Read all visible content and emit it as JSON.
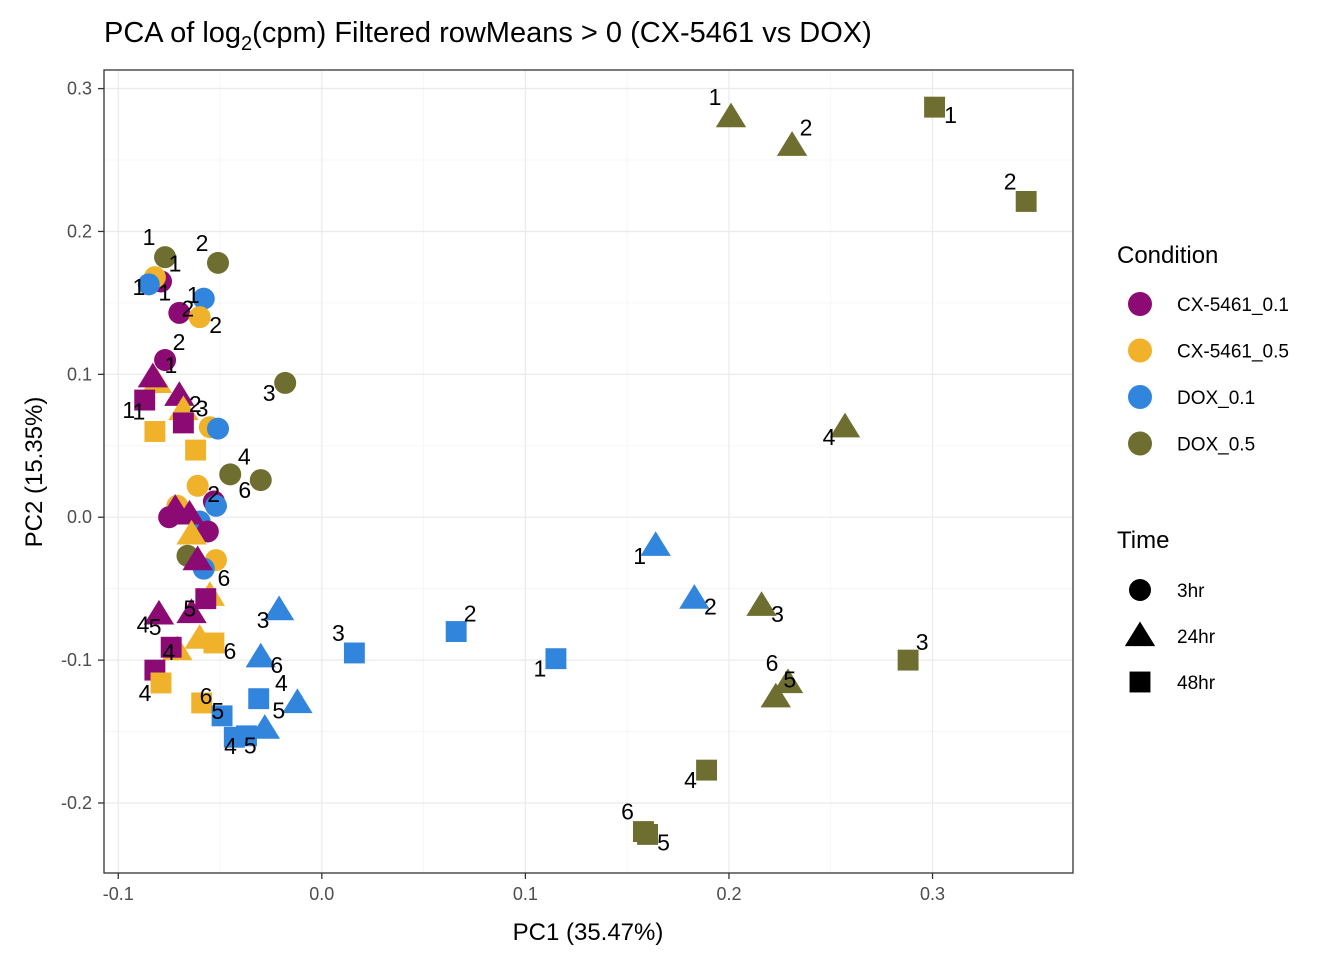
{
  "chart_data": {
    "type": "scatter",
    "title": "PCA of log2(cpm) Filtered rowMeans > 0 (CX-5461 vs DOX)",
    "title_parts": {
      "pre": "PCA of log",
      "sub": "2",
      "post": "(cpm) Filtered rowMeans > 0 (CX-5461 vs DOX)"
    },
    "xlabel": "PC1 (35.47%)",
    "ylabel": "PC2 (15.35%)",
    "xlim": [
      -0.107,
      0.369
    ],
    "ylim": [
      -0.249,
      0.313
    ],
    "x_ticks": [
      -0.1,
      0.0,
      0.1,
      0.2,
      0.3
    ],
    "y_ticks": [
      -0.2,
      -0.1,
      0.0,
      0.1,
      0.2,
      0.3
    ],
    "grid": true,
    "legend_position": "right",
    "colors": {
      "CX-5461_0.1": "#8b0a73",
      "CX-5461_0.5": "#f0b22a",
      "DOX_0.1": "#3285dc",
      "DOX_0.5": "#6d6e2f"
    },
    "legend": {
      "condition_title": "Condition",
      "conditions": [
        "CX-5461_0.1",
        "CX-5461_0.5",
        "DOX_0.1",
        "DOX_0.5"
      ],
      "time_title": "Time",
      "times": [
        {
          "label": "3hr",
          "shape": "circle"
        },
        {
          "label": "24hr",
          "shape": "triangle"
        },
        {
          "label": "48hr",
          "shape": "square"
        }
      ]
    },
    "points": [
      {
        "x": -0.079,
        "y": 0.165,
        "condition": "CX-5461_0.1",
        "time": "3hr",
        "label": "1"
      },
      {
        "x": -0.082,
        "y": 0.168,
        "condition": "CX-5461_0.5",
        "time": "3hr",
        "label": "1"
      },
      {
        "x": -0.085,
        "y": 0.163,
        "condition": "DOX_0.1",
        "time": "3hr",
        "label": "1"
      },
      {
        "x": -0.077,
        "y": 0.182,
        "condition": "DOX_0.5",
        "time": "3hr",
        "label": "1"
      },
      {
        "x": -0.07,
        "y": 0.143,
        "condition": "CX-5461_0.1",
        "time": "3hr",
        "label": "1"
      },
      {
        "x": -0.058,
        "y": 0.153,
        "condition": "DOX_0.1",
        "time": "3hr",
        "label": "2"
      },
      {
        "x": -0.06,
        "y": 0.14,
        "condition": "CX-5461_0.5",
        "time": "3hr",
        "label": "2"
      },
      {
        "x": -0.051,
        "y": 0.178,
        "condition": "DOX_0.5",
        "time": "3hr",
        "label": "2"
      },
      {
        "x": -0.077,
        "y": 0.11,
        "condition": "CX-5461_0.1",
        "time": "3hr",
        "label": "2"
      },
      {
        "x": -0.018,
        "y": 0.094,
        "condition": "DOX_0.5",
        "time": "3hr",
        "label": "3"
      },
      {
        "x": -0.055,
        "y": 0.063,
        "condition": "CX-5461_0.5",
        "time": "3hr",
        "label": ""
      },
      {
        "x": -0.051,
        "y": 0.062,
        "condition": "DOX_0.1",
        "time": "3hr",
        "label": "3"
      },
      {
        "x": -0.045,
        "y": 0.03,
        "condition": "DOX_0.5",
        "time": "3hr",
        "label": "4"
      },
      {
        "x": -0.03,
        "y": 0.026,
        "condition": "DOX_0.5",
        "time": "3hr",
        "label": "6"
      },
      {
        "x": -0.061,
        "y": 0.022,
        "condition": "CX-5461_0.5",
        "time": "3hr",
        "label": "2"
      },
      {
        "x": -0.053,
        "y": 0.011,
        "condition": "CX-5461_0.1",
        "time": "3hr",
        "label": ""
      },
      {
        "x": -0.071,
        "y": 0.008,
        "condition": "CX-5461_0.5",
        "time": "3hr",
        "label": ""
      },
      {
        "x": -0.052,
        "y": 0.008,
        "condition": "DOX_0.1",
        "time": "3hr",
        "label": ""
      },
      {
        "x": -0.075,
        "y": 0.0,
        "condition": "CX-5461_0.1",
        "time": "3hr",
        "label": ""
      },
      {
        "x": -0.06,
        "y": -0.003,
        "condition": "DOX_0.1",
        "time": "3hr",
        "label": ""
      },
      {
        "x": -0.056,
        "y": -0.01,
        "condition": "CX-5461_0.1",
        "time": "3hr",
        "label": ""
      },
      {
        "x": -0.066,
        "y": -0.027,
        "condition": "DOX_0.5",
        "time": "3hr",
        "label": ""
      },
      {
        "x": -0.052,
        "y": -0.03,
        "condition": "CX-5461_0.5",
        "time": "3hr",
        "label": ""
      },
      {
        "x": -0.058,
        "y": -0.036,
        "condition": "DOX_0.1",
        "time": "3hr",
        "label": ""
      },
      {
        "x": -0.081,
        "y": 0.094,
        "condition": "CX-5461_0.5",
        "time": "24hr",
        "label": "1"
      },
      {
        "x": -0.083,
        "y": 0.098,
        "condition": "CX-5461_0.1",
        "time": "24hr",
        "label": ""
      },
      {
        "x": -0.07,
        "y": 0.085,
        "condition": "CX-5461_0.1",
        "time": "24hr",
        "label": "2"
      },
      {
        "x": -0.068,
        "y": 0.075,
        "condition": "CX-5461_0.5",
        "time": "24hr",
        "label": ""
      },
      {
        "x": -0.072,
        "y": 0.006,
        "condition": "CX-5461_0.1",
        "time": "24hr",
        "label": ""
      },
      {
        "x": -0.065,
        "y": 0.002,
        "condition": "CX-5461_0.1",
        "time": "24hr",
        "label": ""
      },
      {
        "x": -0.064,
        "y": -0.012,
        "condition": "CX-5461_0.5",
        "time": "24hr",
        "label": ""
      },
      {
        "x": -0.061,
        "y": -0.03,
        "condition": "CX-5461_0.1",
        "time": "24hr",
        "label": ""
      },
      {
        "x": -0.055,
        "y": -0.055,
        "condition": "CX-5461_0.5",
        "time": "24hr",
        "label": "6"
      },
      {
        "x": -0.08,
        "y": -0.068,
        "condition": "CX-5461_0.1",
        "time": "24hr",
        "label": "4"
      },
      {
        "x": -0.064,
        "y": -0.067,
        "condition": "CX-5461_0.1",
        "time": "24hr",
        "label": ""
      },
      {
        "x": -0.06,
        "y": -0.085,
        "condition": "CX-5461_0.5",
        "time": "24hr",
        "label": ""
      },
      {
        "x": -0.071,
        "y": -0.093,
        "condition": "CX-5461_0.5",
        "time": "24hr",
        "label": ""
      },
      {
        "x": -0.021,
        "y": -0.065,
        "condition": "DOX_0.1",
        "time": "24hr",
        "label": "3"
      },
      {
        "x": -0.03,
        "y": -0.098,
        "condition": "DOX_0.1",
        "time": "24hr",
        "label": "6"
      },
      {
        "x": -0.012,
        "y": -0.13,
        "condition": "DOX_0.1",
        "time": "24hr",
        "label": "4"
      },
      {
        "x": -0.028,
        "y": -0.148,
        "condition": "DOX_0.1",
        "time": "24hr",
        "label": "5"
      },
      {
        "x": 0.164,
        "y": -0.02,
        "condition": "DOX_0.1",
        "time": "24hr",
        "label": "1"
      },
      {
        "x": 0.183,
        "y": -0.057,
        "condition": "DOX_0.1",
        "time": "24hr",
        "label": "2"
      },
      {
        "x": 0.201,
        "y": 0.28,
        "condition": "DOX_0.5",
        "time": "24hr",
        "label": "1"
      },
      {
        "x": 0.231,
        "y": 0.26,
        "condition": "DOX_0.5",
        "time": "24hr",
        "label": "2"
      },
      {
        "x": 0.257,
        "y": 0.063,
        "condition": "DOX_0.5",
        "time": "24hr",
        "label": "4"
      },
      {
        "x": 0.216,
        "y": -0.062,
        "condition": "DOX_0.5",
        "time": "24hr",
        "label": "3"
      },
      {
        "x": 0.229,
        "y": -0.116,
        "condition": "DOX_0.5",
        "time": "24hr",
        "label": "6"
      },
      {
        "x": 0.223,
        "y": -0.126,
        "condition": "DOX_0.5",
        "time": "24hr",
        "label": "5"
      },
      {
        "x": -0.087,
        "y": 0.082,
        "condition": "CX-5461_0.1",
        "time": "48hr",
        "label": "1"
      },
      {
        "x": -0.068,
        "y": 0.066,
        "condition": "CX-5461_0.1",
        "time": "48hr",
        "label": ""
      },
      {
        "x": -0.082,
        "y": 0.06,
        "condition": "CX-5461_0.5",
        "time": "48hr",
        "label": "1"
      },
      {
        "x": -0.062,
        "y": 0.047,
        "condition": "CX-5461_0.5",
        "time": "48hr",
        "label": ""
      },
      {
        "x": -0.057,
        "y": -0.057,
        "condition": "CX-5461_0.1",
        "time": "48hr",
        "label": "5"
      },
      {
        "x": -0.053,
        "y": -0.088,
        "condition": "CX-5461_0.5",
        "time": "48hr",
        "label": "6"
      },
      {
        "x": -0.074,
        "y": -0.091,
        "condition": "CX-5461_0.1",
        "time": "48hr",
        "label": "5"
      },
      {
        "x": -0.082,
        "y": -0.107,
        "condition": "CX-5461_0.1",
        "time": "48hr",
        "label": "4"
      },
      {
        "x": -0.079,
        "y": -0.116,
        "condition": "CX-5461_0.5",
        "time": "48hr",
        "label": "4"
      },
      {
        "x": -0.059,
        "y": -0.13,
        "condition": "CX-5461_0.5",
        "time": "48hr",
        "label": "5"
      },
      {
        "x": -0.049,
        "y": -0.139,
        "condition": "DOX_0.1",
        "time": "48hr",
        "label": "6"
      },
      {
        "x": -0.031,
        "y": -0.127,
        "condition": "DOX_0.1",
        "time": "48hr",
        "label": ""
      },
      {
        "x": -0.037,
        "y": -0.153,
        "condition": "DOX_0.1",
        "time": "48hr",
        "label": "4"
      },
      {
        "x": -0.043,
        "y": -0.154,
        "condition": "DOX_0.1",
        "time": "48hr",
        "label": "5"
      },
      {
        "x": 0.016,
        "y": -0.095,
        "condition": "DOX_0.1",
        "time": "48hr",
        "label": "3"
      },
      {
        "x": 0.066,
        "y": -0.08,
        "condition": "DOX_0.1",
        "time": "48hr",
        "label": "2"
      },
      {
        "x": 0.115,
        "y": -0.099,
        "condition": "DOX_0.1",
        "time": "48hr",
        "label": "1"
      },
      {
        "x": 0.301,
        "y": 0.287,
        "condition": "DOX_0.5",
        "time": "48hr",
        "label": "1"
      },
      {
        "x": 0.346,
        "y": 0.221,
        "condition": "DOX_0.5",
        "time": "48hr",
        "label": "2"
      },
      {
        "x": 0.288,
        "y": -0.1,
        "condition": "DOX_0.5",
        "time": "48hr",
        "label": "3"
      },
      {
        "x": 0.189,
        "y": -0.177,
        "condition": "DOX_0.5",
        "time": "48hr",
        "label": "4"
      },
      {
        "x": 0.16,
        "y": -0.222,
        "condition": "DOX_0.5",
        "time": "48hr",
        "label": "5"
      },
      {
        "x": 0.158,
        "y": -0.22,
        "condition": "DOX_0.5",
        "time": "48hr",
        "label": "6"
      }
    ]
  }
}
